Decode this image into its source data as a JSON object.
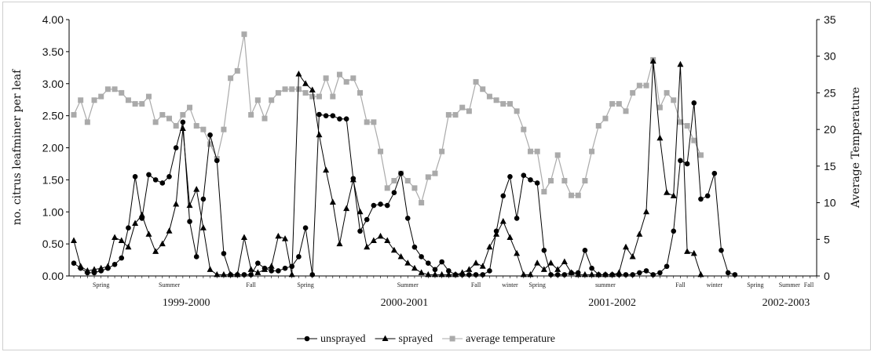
{
  "chart_data": {
    "type": "line",
    "title": "",
    "ylabel": "no. citrus leafminer per leaf",
    "ylabel_right": "Average Temperature",
    "ylim": [
      0,
      4
    ],
    "ylim_right": [
      0,
      35
    ],
    "yticks": [
      "0.00",
      "0.50",
      "1.00",
      "1.50",
      "2.00",
      "2.50",
      "3.00",
      "3.50",
      "4.00"
    ],
    "yticks_right": [
      "0",
      "5",
      "10",
      "15",
      "20",
      "25",
      "30",
      "35"
    ],
    "n_points": 110,
    "seasons": [
      {
        "label": "Spring",
        "i": 4
      },
      {
        "label": "Summer",
        "i": 14
      },
      {
        "label": "Fall",
        "i": 26
      },
      {
        "label": "Spring",
        "i": 34
      },
      {
        "label": "Summer",
        "i": 49
      },
      {
        "label": "Fall",
        "i": 59
      },
      {
        "label": "winter",
        "i": 64
      },
      {
        "label": "Spring",
        "i": 68
      },
      {
        "label": "summer",
        "i": 78
      },
      {
        "label": "Fall",
        "i": 89
      },
      {
        "label": "winter",
        "i": 94
      },
      {
        "label": "Spring",
        "i": 100
      },
      {
        "label": "Summer",
        "i": 105
      },
      {
        "label": "Fall",
        "i": 111
      }
    ],
    "periods": [
      {
        "label": "1999-2000",
        "i": 16.5
      },
      {
        "label": "2000-2001",
        "i": 48.5
      },
      {
        "label": "2001-2002",
        "i": 79
      },
      {
        "label": "2002-2003",
        "i": 104.5
      }
    ],
    "series": [
      {
        "name": "unsprayed",
        "marker": "circle",
        "color": "#000000",
        "axis": "left",
        "values": [
          0.2,
          0.12,
          0.05,
          0.05,
          0.08,
          0.12,
          0.18,
          0.28,
          0.75,
          1.55,
          0.9,
          1.58,
          1.5,
          1.45,
          1.55,
          2.0,
          2.4,
          0.85,
          0.3,
          1.2,
          2.2,
          1.8,
          0.35,
          0.02,
          0.02,
          0.02,
          0.02,
          0.2,
          0.12,
          0.08,
          0.08,
          0.12,
          0.15,
          0.3,
          0.75,
          0.02,
          2.52,
          2.5,
          2.5,
          2.45,
          2.45,
          1.52,
          0.7,
          0.88,
          1.1,
          1.12,
          1.1,
          1.3,
          1.6,
          0.9,
          0.45,
          0.3,
          0.2,
          0.1,
          0.22,
          0.08,
          0.02,
          0.02,
          0.02,
          0.02,
          0.02,
          0.08,
          0.7,
          1.25,
          1.55,
          0.9,
          1.57,
          1.5,
          1.45,
          0.4,
          0.02,
          0.02,
          0.02,
          0.05,
          0.05,
          0.4,
          0.12,
          0.02,
          0.02,
          0.02,
          0.02,
          0.02,
          0.02,
          0.05,
          0.08,
          0.02,
          0.05,
          0.15,
          0.7,
          1.8,
          1.75,
          2.7,
          1.2,
          1.25,
          1.6,
          0.4,
          0.05,
          0.02
        ]
      },
      {
        "name": "sprayed",
        "marker": "triangle",
        "color": "#000000",
        "axis": "left",
        "values": [
          0.55,
          0.15,
          0.08,
          0.1,
          0.12,
          0.15,
          0.6,
          0.55,
          0.45,
          0.82,
          0.95,
          0.65,
          0.38,
          0.5,
          0.7,
          1.12,
          2.3,
          1.1,
          1.35,
          0.75,
          0.1,
          0.02,
          0.02,
          0.02,
          0.02,
          0.6,
          0.1,
          0.05,
          0.1,
          0.15,
          0.62,
          0.58,
          0.02,
          3.15,
          3.0,
          2.9,
          2.2,
          1.65,
          1.15,
          0.5,
          1.05,
          1.5,
          1.0,
          0.45,
          0.55,
          0.62,
          0.55,
          0.4,
          0.3,
          0.2,
          0.12,
          0.05,
          0.02,
          0.02,
          0.02,
          0.02,
          0.02,
          0.05,
          0.1,
          0.2,
          0.15,
          0.45,
          0.65,
          0.85,
          0.6,
          0.35,
          0.02,
          0.02,
          0.2,
          0.1,
          0.2,
          0.1,
          0.22,
          0.05,
          0.02,
          0.02,
          0.02,
          0.02,
          0.02,
          0.02,
          0.05,
          0.45,
          0.3,
          0.65,
          1.0,
          3.35,
          2.15,
          1.3,
          1.25,
          3.3,
          0.38,
          0.35,
          0.02
        ]
      },
      {
        "name": "average temperature",
        "marker": "square",
        "color": "#aaaaaa",
        "axis": "right",
        "values": [
          22,
          24,
          21,
          24,
          24.5,
          25.5,
          25.5,
          25,
          24,
          23.5,
          23.5,
          24.5,
          21,
          22,
          21.5,
          20.5,
          22,
          23,
          20.5,
          20,
          18,
          16,
          20,
          27,
          28,
          33,
          22,
          24,
          21.5,
          24,
          25,
          25.5,
          25.5,
          25.5,
          25,
          24.5,
          24.5,
          27,
          24.5,
          27.5,
          26.5,
          27,
          25,
          21,
          21,
          17,
          12,
          13,
          14,
          13,
          12,
          10,
          13.5,
          14,
          17,
          22,
          22,
          23,
          22.5,
          26.5,
          25.5,
          24.5,
          24,
          23.5,
          23.5,
          22.5,
          20,
          17,
          17,
          11.5,
          13,
          16.5,
          13,
          11,
          11,
          13,
          17,
          20.5,
          21.5,
          23.5,
          23.5,
          22.5,
          25,
          26,
          26,
          29.5,
          23,
          25,
          24,
          21,
          20.5,
          18.5,
          16.5
        ]
      }
    ],
    "legend": {
      "placement": "bottom-center",
      "items": [
        "unsprayed",
        "sprayed",
        "average temperature"
      ]
    }
  }
}
